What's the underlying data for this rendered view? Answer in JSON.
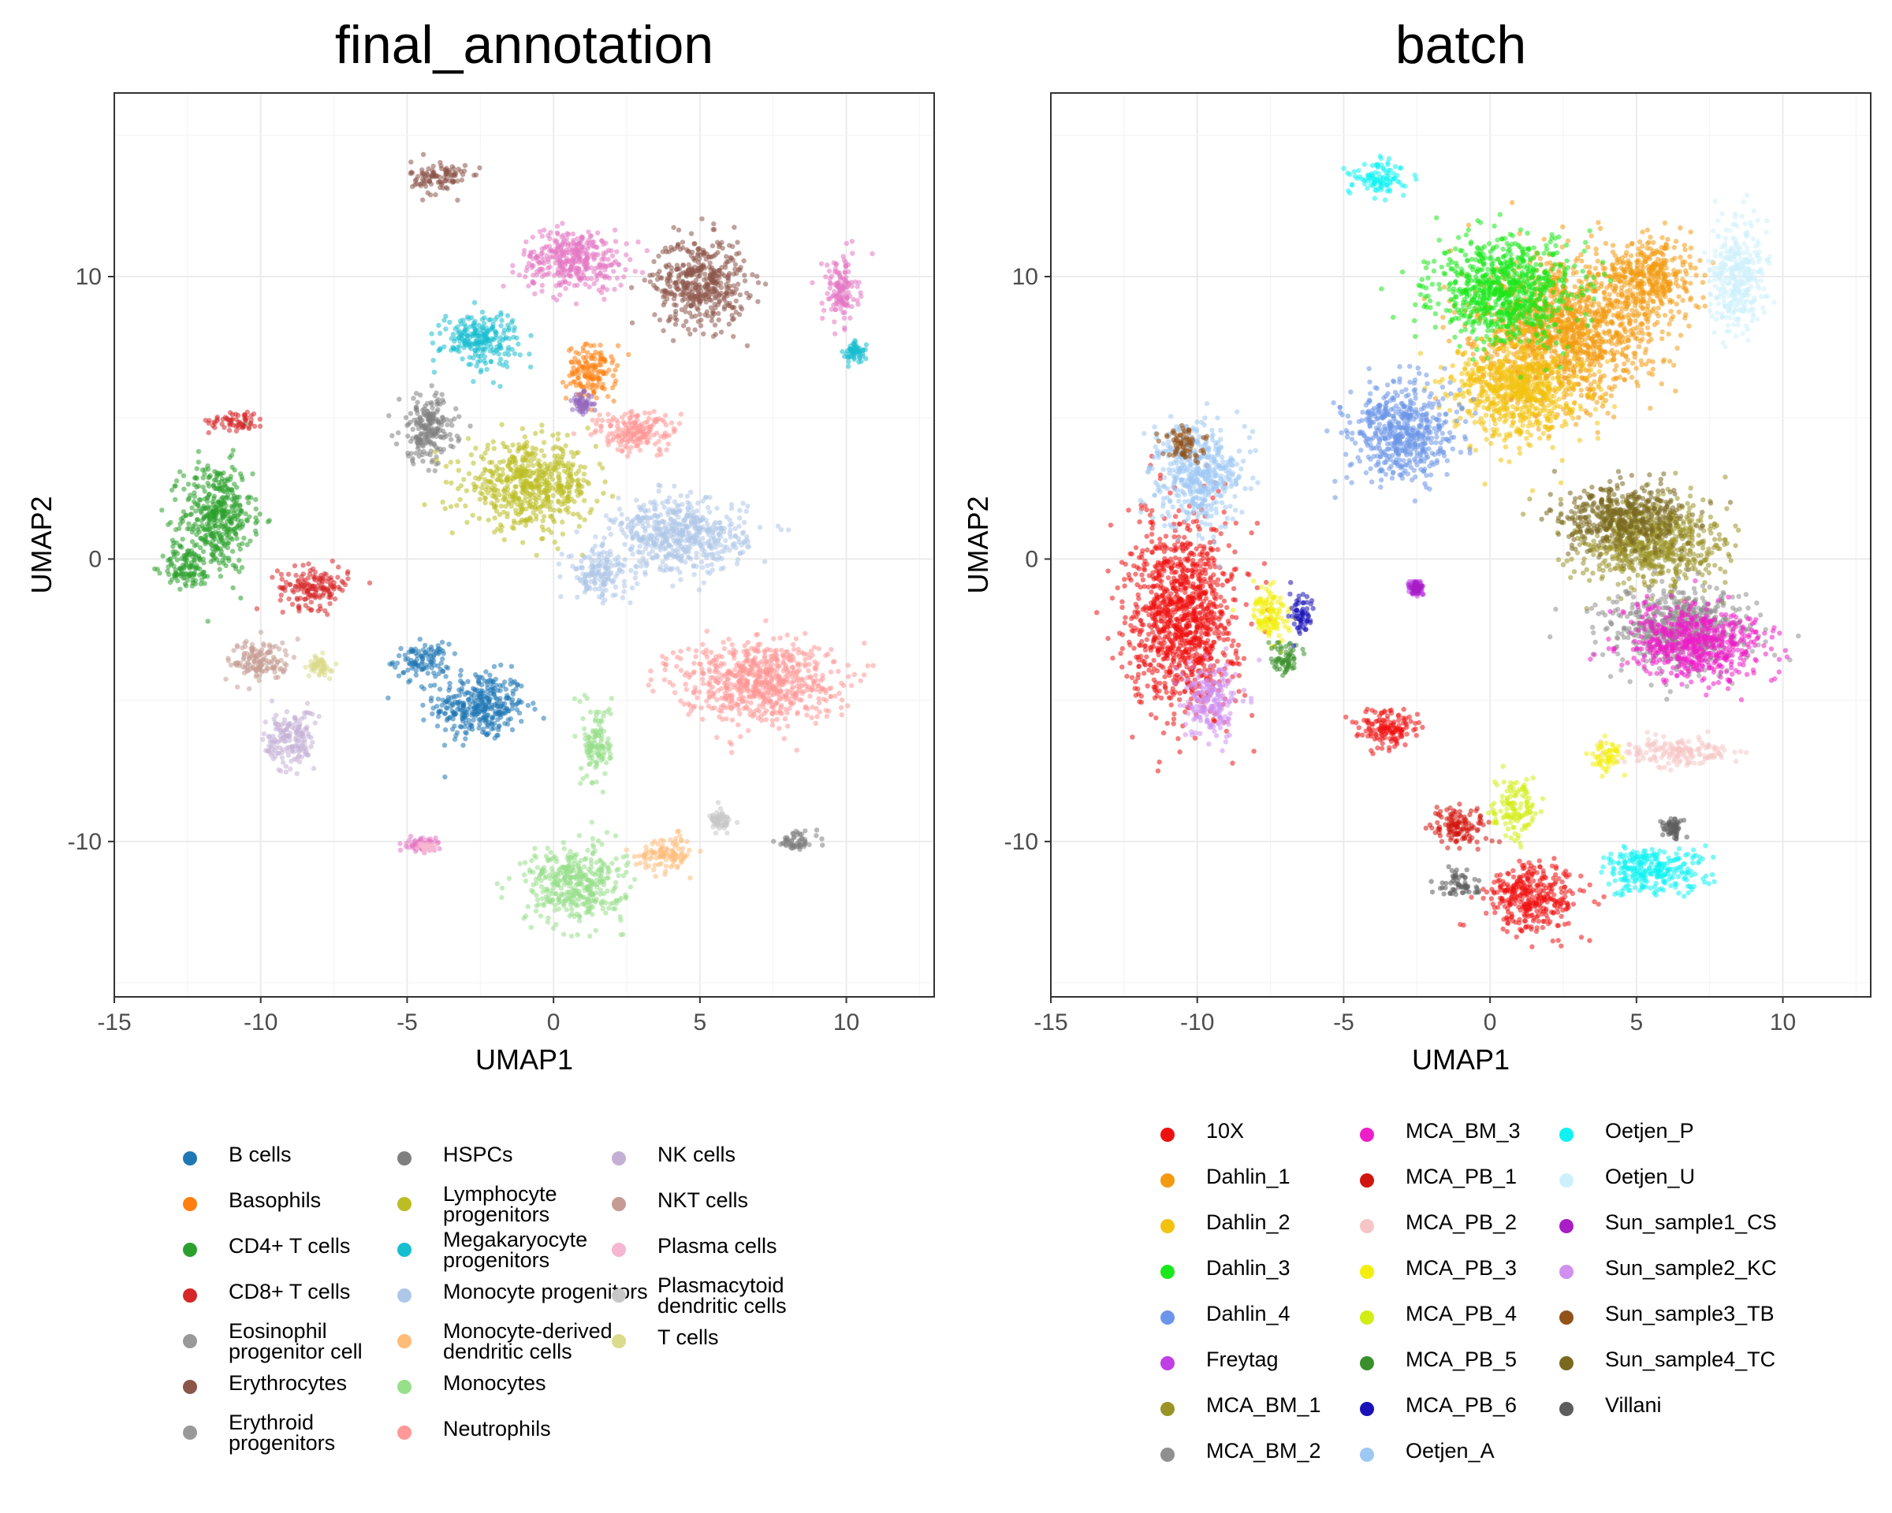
{
  "chart_data": [
    {
      "type": "scatter",
      "title": "final_annotation",
      "xlabel": "UMAP1",
      "ylabel": "UMAP2",
      "xlim": [
        -15,
        13
      ],
      "ylim": [
        -15.5,
        16.5
      ],
      "xticks": [
        -15,
        -10,
        -5,
        0,
        5,
        10
      ],
      "xtick_labels": [
        "-15",
        "-10",
        "-5",
        "0",
        "5",
        "10"
      ],
      "yticks": [
        -10,
        0,
        10
      ],
      "ytick_labels": [
        "-10",
        "0",
        "10"
      ],
      "grid": true,
      "legend_position": "bottom",
      "series": [
        {
          "name": "B cells",
          "color": "#1f77b4",
          "clusters": [
            {
              "x": -2.5,
              "y": -5.2,
              "sx": 1.3,
              "sy": 1.0
            },
            {
              "x": -4.5,
              "y": -3.6,
              "sx": 0.8,
              "sy": 0.5
            }
          ]
        },
        {
          "name": "Basophils",
          "color": "#ff7f0e",
          "clusters": [
            {
              "x": 1.3,
              "y": 6.6,
              "sx": 0.7,
              "sy": 0.8
            }
          ]
        },
        {
          "name": "CD4+ T cells",
          "color": "#2ca02c",
          "clusters": [
            {
              "x": -11.5,
              "y": 1.5,
              "sx": 1.0,
              "sy": 1.6
            },
            {
              "x": -12.5,
              "y": -0.3,
              "sx": 0.7,
              "sy": 0.6
            }
          ]
        },
        {
          "name": "CD8+ T cells",
          "color": "#d62728",
          "clusters": [
            {
              "x": -10.8,
              "y": 4.9,
              "sx": 0.8,
              "sy": 0.3
            },
            {
              "x": -8.2,
              "y": -1.0,
              "sx": 1.0,
              "sy": 0.6
            }
          ]
        },
        {
          "name": "Eosinophil progenitor cell",
          "color": "#9467bd",
          "clusters": [
            {
              "x": 1.0,
              "y": 5.5,
              "sx": 0.3,
              "sy": 0.3
            }
          ]
        },
        {
          "name": "Erythrocytes",
          "color": "#8c564b",
          "clusters": [
            {
              "x": 5.0,
              "y": 9.8,
              "sx": 1.3,
              "sy": 1.3
            },
            {
              "x": -3.9,
              "y": 13.5,
              "sx": 0.8,
              "sy": 0.5
            }
          ]
        },
        {
          "name": "Erythroid progenitors",
          "color": "#e377c2",
          "clusters": [
            {
              "x": 0.7,
              "y": 10.6,
              "sx": 1.5,
              "sy": 0.9
            },
            {
              "x": 9.8,
              "y": 9.5,
              "sx": 0.5,
              "sy": 1.0
            },
            {
              "x": -4.5,
              "y": -10.1,
              "sx": 0.4,
              "sy": 0.2
            }
          ]
        },
        {
          "name": "HSPCs",
          "color": "#7f7f7f",
          "clusters": [
            {
              "x": -4.3,
              "y": 4.6,
              "sx": 0.8,
              "sy": 1.0
            },
            {
              "x": 8.3,
              "y": -10.0,
              "sx": 0.6,
              "sy": 0.3
            }
          ]
        },
        {
          "name": "Lymphocyte\nprogenitors",
          "color": "#bcbd22",
          "clusters": [
            {
              "x": -0.8,
              "y": 2.6,
              "sx": 1.8,
              "sy": 1.2
            }
          ]
        },
        {
          "name": "Megakaryocyte\nprogenitors",
          "color": "#17becf",
          "clusters": [
            {
              "x": -2.5,
              "y": 7.8,
              "sx": 1.1,
              "sy": 0.8
            },
            {
              "x": 10.3,
              "y": 7.3,
              "sx": 0.3,
              "sy": 0.3
            }
          ]
        },
        {
          "name": "Monocyte progenitors",
          "color": "#aec7e8",
          "clusters": [
            {
              "x": 4.3,
              "y": 0.8,
              "sx": 1.9,
              "sy": 1.1
            },
            {
              "x": 1.5,
              "y": -0.5,
              "sx": 0.8,
              "sy": 0.7
            }
          ]
        },
        {
          "name": "Monocyte-derived\ndendritic cells",
          "color": "#ffbb78",
          "clusters": [
            {
              "x": 3.9,
              "y": -10.4,
              "sx": 0.8,
              "sy": 0.5
            }
          ]
        },
        {
          "name": "Monocytes",
          "color": "#98df8a",
          "clusters": [
            {
              "x": 0.7,
              "y": -11.5,
              "sx": 1.4,
              "sy": 1.1
            },
            {
              "x": 1.5,
              "y": -6.5,
              "sx": 0.4,
              "sy": 1.2
            }
          ]
        },
        {
          "name": "Neutrophils",
          "color": "#ff9896",
          "clusters": [
            {
              "x": 7.0,
              "y": -4.3,
              "sx": 2.2,
              "sy": 1.2
            },
            {
              "x": 2.8,
              "y": 4.5,
              "sx": 1.2,
              "sy": 0.6
            }
          ]
        },
        {
          "name": "NK cells",
          "color": "#c5b0d5",
          "clusters": [
            {
              "x": -9.0,
              "y": -6.4,
              "sx": 0.7,
              "sy": 0.9
            }
          ]
        },
        {
          "name": "NKT cells",
          "color": "#c49c94",
          "clusters": [
            {
              "x": -10.0,
              "y": -3.6,
              "sx": 0.9,
              "sy": 0.6
            }
          ]
        },
        {
          "name": "Plasma cells",
          "color": "#f7b6d2",
          "clusters": [
            {
              "x": -4.3,
              "y": -10.2,
              "sx": 0.2,
              "sy": 0.1
            }
          ]
        },
        {
          "name": "Plasmacytoid\ndendritic cells",
          "color": "#c7c7c7",
          "clusters": [
            {
              "x": 5.7,
              "y": -9.3,
              "sx": 0.3,
              "sy": 0.3
            }
          ]
        },
        {
          "name": "T cells",
          "color": "#dbdb8d",
          "clusters": [
            {
              "x": -8.0,
              "y": -3.8,
              "sx": 0.3,
              "sy": 0.3
            }
          ]
        }
      ],
      "legend_columns": [
        [
          "B cells",
          "Basophils",
          "CD4+ T cells",
          "CD8+ T cells",
          "Eosinophil\nprogenitor cell",
          "Erythrocytes",
          "Erythroid\nprogenitors"
        ],
        [
          "HSPCs",
          "Lymphocyte\nprogenitors",
          "Megakaryocyte\nprogenitors",
          "Monocyte progenitors",
          "Monocyte-derived\ndendritic cells",
          "Monocytes",
          "Neutrophils"
        ],
        [
          "NK cells",
          "NKT cells",
          "Plasma cells",
          "Plasmacytoid\ndendritic cells",
          "T cells"
        ]
      ]
    },
    {
      "type": "scatter",
      "title": "batch",
      "xlabel": "UMAP1",
      "ylabel": "UMAP2",
      "xlim": [
        -15,
        13
      ],
      "ylim": [
        -15.5,
        16.5
      ],
      "xticks": [
        -15,
        -10,
        -5,
        0,
        5,
        10
      ],
      "xtick_labels": [
        "-15",
        "-10",
        "-5",
        "0",
        "5",
        "10"
      ],
      "yticks": [
        -10,
        0,
        10
      ],
      "ytick_labels": [
        "-10",
        "0",
        "10"
      ],
      "grid": true,
      "legend_position": "bottom",
      "series": [
        {
          "name": "10X",
          "color": "#ee1111",
          "clusters": [
            {
              "x": -10.5,
              "y": -2.0,
              "sx": 1.5,
              "sy": 2.8
            },
            {
              "x": 1.5,
              "y": -12.0,
              "sx": 1.3,
              "sy": 1.0
            },
            {
              "x": -3.5,
              "y": -6.0,
              "sx": 0.9,
              "sy": 0.6
            }
          ]
        },
        {
          "name": "Dahlin_1",
          "color": "#f29a10",
          "clusters": [
            {
              "x": 2.5,
              "y": 8.0,
              "sx": 2.5,
              "sy": 2.0
            },
            {
              "x": 5.5,
              "y": 10.0,
              "sx": 1.2,
              "sy": 1.2
            }
          ]
        },
        {
          "name": "Dahlin_2",
          "color": "#f2c20f",
          "clusters": [
            {
              "x": 1.0,
              "y": 6.0,
              "sx": 1.8,
              "sy": 1.5
            }
          ]
        },
        {
          "name": "Dahlin_3",
          "color": "#1ae81a",
          "clusters": [
            {
              "x": 0.5,
              "y": 9.5,
              "sx": 2.0,
              "sy": 1.5
            }
          ]
        },
        {
          "name": "Dahlin_4",
          "color": "#6b95e8",
          "clusters": [
            {
              "x": -3.0,
              "y": 4.5,
              "sx": 1.5,
              "sy": 1.4
            }
          ]
        },
        {
          "name": "Freytag",
          "color": "#c03ee6",
          "clusters": [
            {
              "x": -2.5,
              "y": -1.0,
              "sx": 0.2,
              "sy": 0.2
            }
          ]
        },
        {
          "name": "MCA_BM_1",
          "color": "#9a9428",
          "clusters": [
            {
              "x": 5.5,
              "y": 0.5,
              "sx": 2.0,
              "sy": 1.3
            }
          ]
        },
        {
          "name": "MCA_BM_2",
          "color": "#909090",
          "clusters": [
            {
              "x": 6.5,
              "y": -2.5,
              "sx": 2.0,
              "sy": 1.2
            }
          ]
        },
        {
          "name": "MCA_BM_3",
          "color": "#ee1ec8",
          "clusters": [
            {
              "x": 7.0,
              "y": -3.0,
              "sx": 2.0,
              "sy": 1.1
            }
          ]
        },
        {
          "name": "MCA_PB_1",
          "color": "#d1160f",
          "clusters": [
            {
              "x": -1.0,
              "y": -9.5,
              "sx": 0.8,
              "sy": 0.6
            }
          ]
        },
        {
          "name": "MCA_PB_2",
          "color": "#f6c6c6",
          "clusters": [
            {
              "x": 6.5,
              "y": -6.8,
              "sx": 1.6,
              "sy": 0.4
            }
          ]
        },
        {
          "name": "MCA_PB_3",
          "color": "#f2ef0e",
          "clusters": [
            {
              "x": -7.5,
              "y": -2.0,
              "sx": 0.6,
              "sy": 0.8
            },
            {
              "x": 4.0,
              "y": -7.0,
              "sx": 0.4,
              "sy": 0.4
            }
          ]
        },
        {
          "name": "MCA_PB_4",
          "color": "#d2ed14",
          "clusters": [
            {
              "x": 0.8,
              "y": -8.8,
              "sx": 0.6,
              "sy": 0.8
            }
          ]
        },
        {
          "name": "MCA_PB_5",
          "color": "#3a8f2c",
          "clusters": [
            {
              "x": -7.0,
              "y": -3.5,
              "sx": 0.5,
              "sy": 0.5
            }
          ]
        },
        {
          "name": "MCA_PB_6",
          "color": "#1a12b8",
          "clusters": [
            {
              "x": -6.5,
              "y": -2.0,
              "sx": 0.4,
              "sy": 0.6
            }
          ]
        },
        {
          "name": "Oetjen_A",
          "color": "#9ec8f4",
          "clusters": [
            {
              "x": -10.0,
              "y": 3.0,
              "sx": 1.2,
              "sy": 1.5
            }
          ]
        },
        {
          "name": "Oetjen_P",
          "color": "#10f2f2",
          "clusters": [
            {
              "x": -3.8,
              "y": 13.5,
              "sx": 0.8,
              "sy": 0.5
            },
            {
              "x": 5.5,
              "y": -11.0,
              "sx": 1.5,
              "sy": 0.7
            }
          ]
        },
        {
          "name": "Oetjen_U",
          "color": "#cdf1fb",
          "clusters": [
            {
              "x": 8.5,
              "y": 10.0,
              "sx": 0.8,
              "sy": 1.6
            }
          ]
        },
        {
          "name": "Sun_sample1_CS",
          "color": "#a81dc4",
          "clusters": [
            {
              "x": -2.5,
              "y": -1.0,
              "sx": 0.15,
              "sy": 0.15
            }
          ]
        },
        {
          "name": "Sun_sample2_KC",
          "color": "#cf90ee",
          "clusters": [
            {
              "x": -9.5,
              "y": -5.0,
              "sx": 0.8,
              "sy": 1.0
            }
          ]
        },
        {
          "name": "Sun_sample3_TB",
          "color": "#92521a",
          "clusters": [
            {
              "x": -10.5,
              "y": 4.0,
              "sx": 0.6,
              "sy": 0.5
            }
          ]
        },
        {
          "name": "Sun_sample4_TC",
          "color": "#7a6a20",
          "clusters": [
            {
              "x": 4.5,
              "y": 1.5,
              "sx": 1.8,
              "sy": 1.0
            }
          ]
        },
        {
          "name": "Villani",
          "color": "#5d5d5d",
          "clusters": [
            {
              "x": -1.0,
              "y": -11.5,
              "sx": 0.6,
              "sy": 0.4
            },
            {
              "x": 6.2,
              "y": -9.5,
              "sx": 0.3,
              "sy": 0.3
            }
          ]
        }
      ],
      "legend_columns": [
        [
          "10X",
          "Dahlin_1",
          "Dahlin_2",
          "Dahlin_3",
          "Dahlin_4",
          "Freytag",
          "MCA_BM_1",
          "MCA_BM_2"
        ],
        [
          "MCA_BM_3",
          "MCA_PB_1",
          "MCA_PB_2",
          "MCA_PB_3",
          "MCA_PB_4",
          "MCA_PB_5",
          "MCA_PB_6",
          "Oetjen_A"
        ],
        [
          "Oetjen_P",
          "Oetjen_U",
          "Sun_sample1_CS",
          "Sun_sample2_KC",
          "Sun_sample3_TB",
          "Sun_sample4_TC",
          "Villani"
        ]
      ]
    }
  ]
}
